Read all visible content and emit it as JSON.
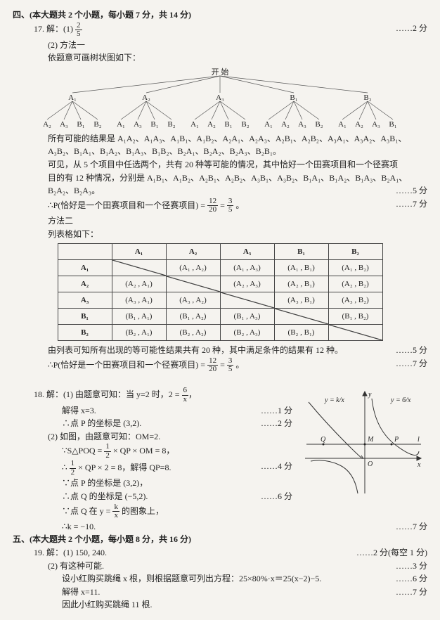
{
  "sectionA_title": "四、(本大题共 2 个小题，每小题 7 分，共 14 分)",
  "q17": {
    "num": "17. 解：(1)",
    "frac1_num": "2",
    "frac1_den": "5",
    "pts1": "2 分",
    "m2a": "(2) 方法一",
    "m2b": "依题意可画树状图如下：",
    "tree": {
      "root": "开 始",
      "level1": [
        "A₁",
        "A₂",
        "A₃",
        "B₁",
        "B₂"
      ],
      "level2": [
        "A₂",
        "A₃",
        "B₁",
        "B₂",
        "A₁",
        "A₃",
        "B₁",
        "B₂",
        "A₁",
        "A₂",
        "B₁",
        "B₂",
        "A₁",
        "A₂",
        "A₃",
        "B₂",
        "A₁",
        "A₂",
        "A₃",
        "B₁"
      ]
    },
    "line_results1": "所有可能的结果是 A₁A₂、A₁A₃、A₁B₁、A₁B₂、A₂A₁、A₂A₃、A₂B₁、A₂B₂、A₃A₁、A₃A₂、A₃B₁、",
    "line_results2": "A₃B₂、B₁A₁、B₁A₂、B₁A₃、B₁B₂、B₂A₁、B₂A₂、B₂A₃、B₂B₁。",
    "line_case1": "可见，从 5 个项目中任选两个，共有 20 种等可能的情况，其中恰好一个田赛项目和一个径赛项",
    "line_case2": "目的有 12 种情况，分别是 A₁B₁、A₁B₂、A₂B₁、A₂B₂、A₃B₁、A₃B₂、B₁A₁、B₁A₂、B₁A₃、B₂A₁、",
    "line_case3": "B₂A₂、B₂A₃。",
    "pts2": "5 分",
    "prob_line_a": "∴P(恰好是一个田赛项目和一个径赛项目) = ",
    "prob_frac1_num": "12",
    "prob_frac1_den": "20",
    "prob_eq": " = ",
    "prob_frac2_num": "3",
    "prob_frac2_den": "5",
    "prob_dot": "。",
    "pts3": "7 分",
    "m2_title": "方法二",
    "m2_sub": "列表格如下：",
    "table": {
      "headers": [
        "",
        "A₁",
        "A₂",
        "A₃",
        "B₁",
        "B₂"
      ],
      "rows": [
        [
          "A₁",
          "",
          "(A₁ , A₂)",
          "(A₁ , A₃)",
          "(A₁ , B₁)",
          "(A₁ , B₂)"
        ],
        [
          "A₂",
          "(A₂ , A₁)",
          "",
          "(A₂ , A₃)",
          "(A₂ , B₁)",
          "(A₂ , B₂)"
        ],
        [
          "A₃",
          "(A₃ , A₁)",
          "(A₃ , A₂)",
          "",
          "(A₃ , B₁)",
          "(A₃ , B₂)"
        ],
        [
          "B₁",
          "(B₁ , A₁)",
          "(B₁ , A₂)",
          "(B₁ , A₃)",
          "",
          "(B₁ , B₂)"
        ],
        [
          "B₂",
          "(B₂ , A₁)",
          "(B₂ , A₂)",
          "(B₂ , A₃)",
          "(B₂ , B₁)",
          ""
        ]
      ]
    },
    "table_after1": "由列表可知所有出现的等可能性结果共有 20 种，其中满足条件的结果有 12 种。",
    "pts4": "5 分",
    "prob2_line": "∴P(恰好是一个田赛项目和一个径赛项目) = ",
    "prob2_f1n": "12",
    "prob2_f1d": "20",
    "prob2_eq": " = ",
    "prob2_f2n": "3",
    "prob2_f2d": "5",
    "prob2_dot": "。",
    "pts5": "7 分"
  },
  "q18": {
    "num_line": "18. 解：(1) 由题意可知：当 y=2 时，2 = ",
    "f1n": "6",
    "f1d": "x",
    "f1dot": "，",
    "l_solve": "解得 x=3.",
    "pts1": "1 分",
    "l_P": "∴点 P 的坐标是 (3,2).",
    "pts2": "2 分",
    "l2_intro": "(2) 如图，由题意可知：OM=2.",
    "l_S": "∵S△POQ = ",
    "half_n": "1",
    "half_d": "2",
    "l_S2": " × QP × OM = 8，",
    "l_half2": "∴",
    "half2_n": "1",
    "half2_d": "2",
    "l_half2b": " × QP × 2 = 8，解得 QP=8.",
    "pts3": "4 分",
    "l_Pagain": "∵点 P 的坐标是 (3,2)，",
    "l_Q": "∴点 Q 的坐标是 (−5,2).",
    "pts4": "6 分",
    "l_Qon": "∵点 Q 在 y = ",
    "kfn": "k",
    "kfd": "x",
    "l_Qon2": " 的图象上，",
    "l_k": "∴k = −10.",
    "pts5": "7 分",
    "graph": {
      "eq_left": "y = k/x",
      "eq_right": "y = 6/x",
      "labels": {
        "M": "M",
        "Q": "Q",
        "P": "P",
        "O": "O",
        "x": "x",
        "y": "y",
        "l": "l"
      }
    }
  },
  "sectionB_title": "五、(本大题共 2 个小题，每小题 8 分，共 16 分)",
  "q19": {
    "num_line": "19. 解：(1) 150, 240.",
    "pts1": "2 分(每空 1 分)",
    "l2": "(2) 有这种可能.",
    "pts2": "3 分",
    "l3": "设小红购买跳绳 x 根，则根据题意可列出方程：25×80%·x＝25(x−2)−5.",
    "pts3": "6 分",
    "l4": "解得 x=11.",
    "pts4": "7 分",
    "l5": "因此小红购买跳绳 11 根."
  }
}
